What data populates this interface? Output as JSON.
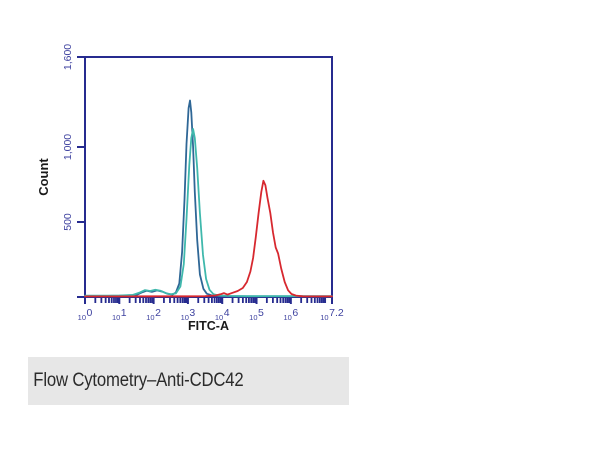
{
  "page": {
    "background": "#ffffff"
  },
  "caption": {
    "text": "Flow Cytometry–Anti-CDC42",
    "background": "#e7e7e7",
    "text_color": "#2b2b2b"
  },
  "chart_data": {
    "type": "line",
    "subtype": "flow-cytometry-histogram-overlay",
    "title": "",
    "xlabel": "FITC-A",
    "ylabel": "Count",
    "x_scale": "log10",
    "xlim": [
      0,
      7.2
    ],
    "ylim": [
      0,
      1600
    ],
    "grid": false,
    "legend": "none",
    "axis_color": "#262b8f",
    "tick_label_color": "#3f43a0",
    "axis_text_color": "#1a1a1a",
    "x_tick_base": "10",
    "x_ticks": [
      {
        "position": 0,
        "exponent": "0"
      },
      {
        "position": 1,
        "exponent": "1"
      },
      {
        "position": 2,
        "exponent": "2"
      },
      {
        "position": 3,
        "exponent": "3"
      },
      {
        "position": 4,
        "exponent": "4"
      },
      {
        "position": 5,
        "exponent": "5"
      },
      {
        "position": 6,
        "exponent": "6"
      },
      {
        "position": 7.2,
        "exponent": "7.2"
      }
    ],
    "y_ticks": [
      {
        "value": 500,
        "label": "500"
      },
      {
        "value": 1000,
        "label": "1,000"
      },
      {
        "value": 1600,
        "label": "1,600"
      }
    ],
    "series": [
      {
        "name": "dark-blue-peak",
        "color": "#2f6796",
        "peak_x_log": 3.06,
        "peak_count": 1310,
        "points": [
          [
            0.0,
            6
          ],
          [
            0.4,
            6
          ],
          [
            0.8,
            8
          ],
          [
            1.2,
            8
          ],
          [
            1.5,
            14
          ],
          [
            1.65,
            30
          ],
          [
            1.8,
            42
          ],
          [
            1.95,
            34
          ],
          [
            2.1,
            44
          ],
          [
            2.25,
            36
          ],
          [
            2.4,
            22
          ],
          [
            2.55,
            16
          ],
          [
            2.65,
            30
          ],
          [
            2.75,
            90
          ],
          [
            2.83,
            300
          ],
          [
            2.9,
            650
          ],
          [
            2.96,
            1020
          ],
          [
            3.02,
            1260
          ],
          [
            3.06,
            1310
          ],
          [
            3.1,
            1230
          ],
          [
            3.15,
            1000
          ],
          [
            3.2,
            700
          ],
          [
            3.27,
            380
          ],
          [
            3.35,
            150
          ],
          [
            3.45,
            55
          ],
          [
            3.55,
            22
          ],
          [
            3.7,
            10
          ],
          [
            4.0,
            6
          ],
          [
            4.5,
            5
          ],
          [
            5.0,
            5
          ],
          [
            5.5,
            5
          ],
          [
            6.0,
            5
          ],
          [
            6.5,
            5
          ],
          [
            7.2,
            5
          ]
        ]
      },
      {
        "name": "teal-peak",
        "color": "#3fb8ac",
        "peak_x_log": 3.15,
        "peak_count": 1120,
        "points": [
          [
            0.0,
            9
          ],
          [
            0.5,
            9
          ],
          [
            1.0,
            10
          ],
          [
            1.4,
            14
          ],
          [
            1.6,
            30
          ],
          [
            1.75,
            46
          ],
          [
            1.9,
            40
          ],
          [
            2.05,
            48
          ],
          [
            2.2,
            42
          ],
          [
            2.35,
            26
          ],
          [
            2.5,
            18
          ],
          [
            2.65,
            24
          ],
          [
            2.78,
            70
          ],
          [
            2.88,
            220
          ],
          [
            2.96,
            520
          ],
          [
            3.04,
            880
          ],
          [
            3.1,
            1060
          ],
          [
            3.15,
            1120
          ],
          [
            3.2,
            1060
          ],
          [
            3.27,
            860
          ],
          [
            3.35,
            560
          ],
          [
            3.44,
            280
          ],
          [
            3.53,
            120
          ],
          [
            3.63,
            48
          ],
          [
            3.75,
            18
          ],
          [
            3.9,
            10
          ],
          [
            4.2,
            7
          ],
          [
            4.7,
            6
          ],
          [
            5.2,
            6
          ],
          [
            5.7,
            6
          ],
          [
            6.2,
            6
          ],
          [
            6.8,
            6
          ],
          [
            7.2,
            6
          ]
        ]
      },
      {
        "name": "red-peak",
        "color": "#d7282f",
        "peak_x_log": 5.2,
        "peak_count": 775,
        "points": [
          [
            0.0,
            4
          ],
          [
            0.6,
            4
          ],
          [
            1.2,
            4
          ],
          [
            1.8,
            5
          ],
          [
            2.4,
            5
          ],
          [
            3.0,
            5
          ],
          [
            3.5,
            6
          ],
          [
            3.8,
            10
          ],
          [
            3.95,
            18
          ],
          [
            4.05,
            26
          ],
          [
            4.15,
            16
          ],
          [
            4.3,
            28
          ],
          [
            4.45,
            40
          ],
          [
            4.6,
            60
          ],
          [
            4.72,
            100
          ],
          [
            4.82,
            170
          ],
          [
            4.9,
            260
          ],
          [
            4.98,
            400
          ],
          [
            5.06,
            560
          ],
          [
            5.14,
            700
          ],
          [
            5.2,
            775
          ],
          [
            5.26,
            745
          ],
          [
            5.32,
            660
          ],
          [
            5.4,
            560
          ],
          [
            5.48,
            430
          ],
          [
            5.56,
            330
          ],
          [
            5.63,
            290
          ],
          [
            5.72,
            190
          ],
          [
            5.82,
            100
          ],
          [
            5.92,
            45
          ],
          [
            6.02,
            20
          ],
          [
            6.15,
            9
          ],
          [
            6.35,
            5
          ],
          [
            6.7,
            4
          ],
          [
            7.2,
            4
          ]
        ]
      }
    ]
  }
}
